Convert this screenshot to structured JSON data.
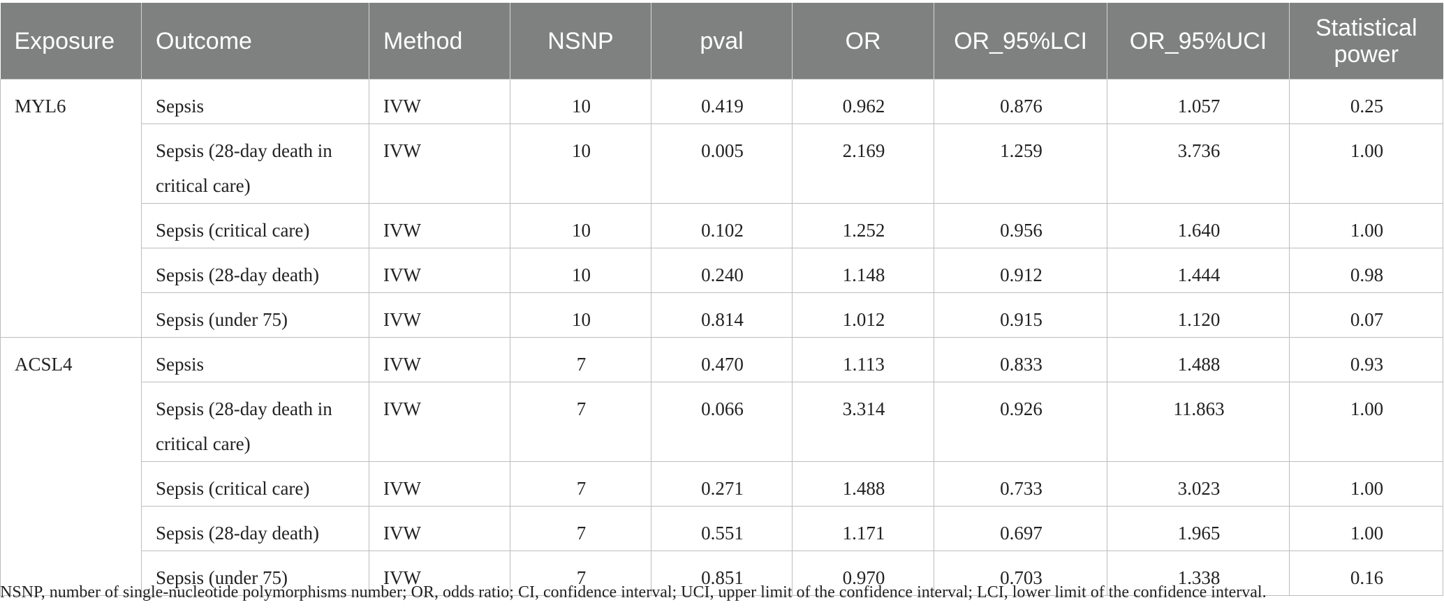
{
  "table": {
    "headers": [
      "Exposure",
      "Outcome",
      "Method",
      "NSNP",
      "pval",
      "OR",
      "OR_95%LCI",
      "OR_95%UCI",
      "Statistical power"
    ],
    "groups": [
      {
        "exposure": "MYL6",
        "rows": [
          {
            "outcome": "Sepsis",
            "method": "IVW",
            "nsnp": "10",
            "pval": "0.419",
            "or": "0.962",
            "lci": "0.876",
            "uci": "1.057",
            "power": "0.25"
          },
          {
            "outcome": "Sepsis (28-day death in critical care)",
            "method": "IVW",
            "nsnp": "10",
            "pval": "0.005",
            "or": "2.169",
            "lci": "1.259",
            "uci": "3.736",
            "power": "1.00"
          },
          {
            "outcome": "Sepsis (critical care)",
            "method": "IVW",
            "nsnp": "10",
            "pval": "0.102",
            "or": "1.252",
            "lci": "0.956",
            "uci": "1.640",
            "power": "1.00"
          },
          {
            "outcome": "Sepsis (28-day death)",
            "method": "IVW",
            "nsnp": "10",
            "pval": "0.240",
            "or": "1.148",
            "lci": "0.912",
            "uci": "1.444",
            "power": "0.98"
          },
          {
            "outcome": "Sepsis (under 75)",
            "method": "IVW",
            "nsnp": "10",
            "pval": "0.814",
            "or": "1.012",
            "lci": "0.915",
            "uci": "1.120",
            "power": "0.07"
          }
        ]
      },
      {
        "exposure": "ACSL4",
        "rows": [
          {
            "outcome": "Sepsis",
            "method": "IVW",
            "nsnp": "7",
            "pval": "0.470",
            "or": "1.113",
            "lci": "0.833",
            "uci": "1.488",
            "power": "0.93"
          },
          {
            "outcome": "Sepsis (28-day death in critical care)",
            "method": "IVW",
            "nsnp": "7",
            "pval": "0.066",
            "or": "3.314",
            "lci": "0.926",
            "uci": "11.863",
            "power": "1.00"
          },
          {
            "outcome": "Sepsis (critical care)",
            "method": "IVW",
            "nsnp": "7",
            "pval": "0.271",
            "or": "1.488",
            "lci": "0.733",
            "uci": "3.023",
            "power": "1.00"
          },
          {
            "outcome": "Sepsis (28-day death)",
            "method": "IVW",
            "nsnp": "7",
            "pval": "0.551",
            "or": "1.171",
            "lci": "0.697",
            "uci": "1.965",
            "power": "1.00"
          },
          {
            "outcome": "Sepsis (under 75)",
            "method": "IVW",
            "nsnp": "7",
            "pval": "0.851",
            "or": "0.970",
            "lci": "0.703",
            "uci": "1.338",
            "power": "0.16"
          }
        ]
      }
    ]
  },
  "footnote": "NSNP, number of single-nucleotide polymorphisms number; OR, odds ratio; CI, confidence interval; UCI, upper limit of the confidence interval; LCI, lower limit of the confidence interval.",
  "colors": {
    "header_bg": "#7f8180",
    "header_text": "#ffffff",
    "border": "#bdbdbd"
  }
}
